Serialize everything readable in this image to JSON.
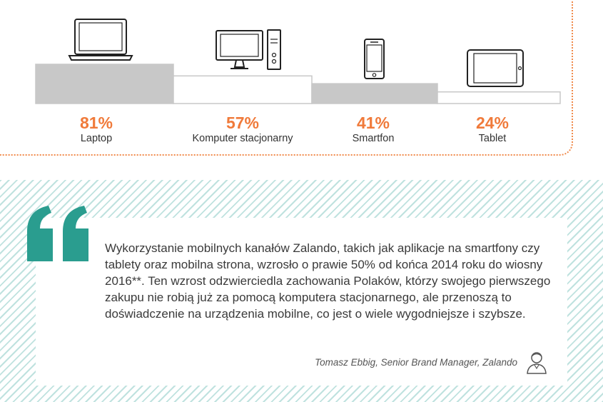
{
  "chart_data": {
    "type": "bar",
    "categories": [
      "Laptop",
      "Komputer stacjonarny",
      "Smartfon",
      "Tablet"
    ],
    "values": [
      81,
      57,
      41,
      24
    ],
    "value_labels": [
      "81%",
      "57%",
      "41%",
      "24%"
    ],
    "icons": [
      "laptop-icon",
      "desktop-computer-icon",
      "smartphone-icon",
      "tablet-icon"
    ],
    "title": "",
    "xlabel": "",
    "ylabel": "",
    "ylim": [
      0,
      100
    ],
    "colors": {
      "value": "#f07a3a",
      "label": "#333333",
      "bar_dark": "#c8c8c8",
      "bar_light": "#ffffff",
      "bar_stroke": "#c8c8c8"
    }
  },
  "quote": {
    "text": "Wykorzystanie mobilnych kanałów Zalando, takich jak aplikacje na smartfony czy tablety oraz mobilna strona, wzrosło o prawie 50% od końca 2014 roku do wiosny 2016**. Ten wzrost odzwierciedla zachowania Polaków, którzy swojego pierwszego zakupu nie robią już za pomocą komputera stacjonarnego, ale przenoszą to doświadczenie na urządzenia mobilne, co jest o wiele wygodniejsze i szybsze.",
    "author": "Tomasz Ebbig, Senior Brand Manager, Zalando",
    "quote_color": "#2a9d8f"
  }
}
